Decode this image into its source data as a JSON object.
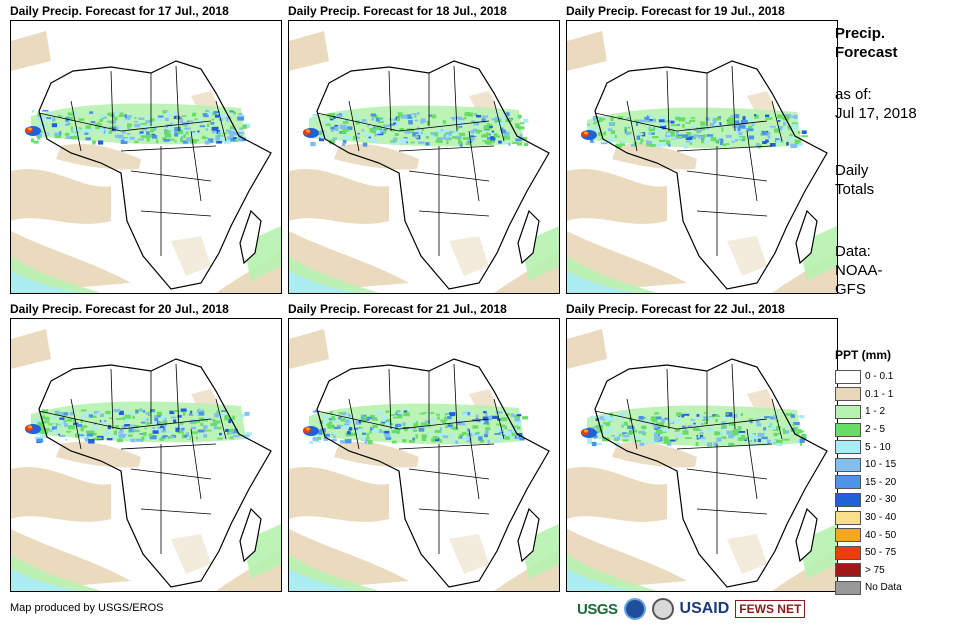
{
  "panels": [
    {
      "title": "Daily Precip. Forecast for 17 Jul., 2018"
    },
    {
      "title": "Daily Precip. Forecast for 18 Jul., 2018"
    },
    {
      "title": "Daily Precip. Forecast for 19 Jul., 2018"
    },
    {
      "title": "Daily Precip. Forecast for 20 Jul., 2018"
    },
    {
      "title": "Daily Precip. Forecast for 21 Jul., 2018"
    },
    {
      "title": "Daily Precip. Forecast for 22 Jul., 2018"
    }
  ],
  "sidebar": {
    "heading_line1": "Precip.",
    "heading_line2": "Forecast",
    "asof_line1": "as of:",
    "asof_line2": "Jul 17, 2018",
    "totals_line1": "Daily",
    "totals_line2": "Totals",
    "source_line1": "Data:",
    "source_line2": "NOAA-",
    "source_line3": "GFS"
  },
  "legend": {
    "title": "PPT (mm)",
    "items": [
      {
        "label": "0 - 0.1",
        "color": "#ffffff"
      },
      {
        "label": "0.1 - 1",
        "color": "#e8d7b8"
      },
      {
        "label": "1 - 2",
        "color": "#b7f2b0"
      },
      {
        "label": "2 - 5",
        "color": "#66dd66"
      },
      {
        "label": "5 - 10",
        "color": "#a8ecf6"
      },
      {
        "label": "10 - 15",
        "color": "#80bff0"
      },
      {
        "label": "15 - 20",
        "color": "#4c95e6"
      },
      {
        "label": "20 - 30",
        "color": "#2060d8"
      },
      {
        "label": "30 - 40",
        "color": "#f8e08a"
      },
      {
        "label": "40 - 50",
        "color": "#f5a623"
      },
      {
        "label": "50 - 75",
        "color": "#f03c0a"
      },
      {
        "label": "> 75",
        "color": "#a01818"
      },
      {
        "label": "No Data",
        "color": "#999999"
      }
    ]
  },
  "footer": {
    "credit": "Map produced by USGS/EROS",
    "logo_usgs": "USGS",
    "logo_usaid": "USAID",
    "logo_fews": "FEWS NET"
  }
}
